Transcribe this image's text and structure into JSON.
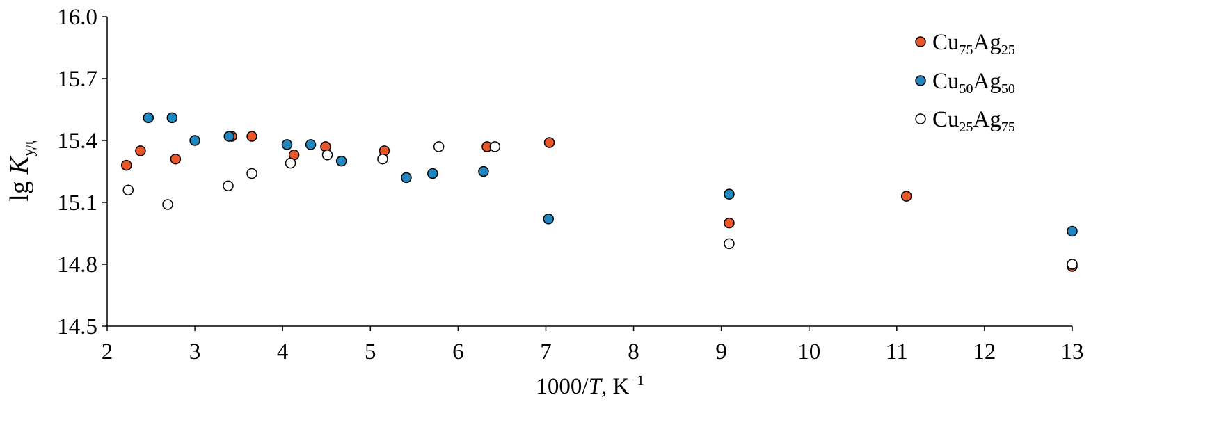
{
  "chart_data": {
    "type": "scatter",
    "title": "",
    "xlabel": {
      "prefix": "1000/",
      "var": "T",
      "unit": ", K",
      "sup": "−1"
    },
    "ylabel": {
      "prefix": "lg ",
      "var": "K",
      "sub": "уд"
    },
    "xlim": [
      2,
      13
    ],
    "ylim": [
      14.5,
      16.0
    ],
    "x_ticks": [
      2,
      3,
      4,
      5,
      6,
      7,
      8,
      9,
      10,
      11,
      12,
      13
    ],
    "y_ticks": [
      14.5,
      14.8,
      15.1,
      15.4,
      15.7,
      16.0
    ],
    "y_tick_labels": [
      "14.5",
      "14.8",
      "15.1",
      "15.4",
      "15.7",
      "16.0"
    ],
    "grid": false,
    "legend_position": "top-right",
    "series": [
      {
        "name": "Cu75Ag25",
        "legend": {
          "el1": "Cu",
          "n1": "75",
          "el2": "Ag",
          "n2": "25"
        },
        "color": "#E8562A",
        "points": [
          [
            2.22,
            15.28
          ],
          [
            2.38,
            15.35
          ],
          [
            2.78,
            15.31
          ],
          [
            3.42,
            15.42
          ],
          [
            3.65,
            15.42
          ],
          [
            4.13,
            15.33
          ],
          [
            4.49,
            15.37
          ],
          [
            5.16,
            15.35
          ],
          [
            6.33,
            15.37
          ],
          [
            7.04,
            15.39
          ],
          [
            9.09,
            15.0
          ],
          [
            11.11,
            15.13
          ],
          [
            13.0,
            14.79
          ]
        ]
      },
      {
        "name": "Cu50Ag50",
        "legend": {
          "el1": "Cu",
          "n1": "50",
          "el2": "Ag",
          "n2": "50"
        },
        "color": "#1F86C0",
        "points": [
          [
            2.47,
            15.51
          ],
          [
            2.74,
            15.51
          ],
          [
            3.0,
            15.4
          ],
          [
            3.39,
            15.42
          ],
          [
            4.05,
            15.38
          ],
          [
            4.32,
            15.38
          ],
          [
            4.67,
            15.3
          ],
          [
            5.41,
            15.22
          ],
          [
            5.71,
            15.24
          ],
          [
            6.29,
            15.25
          ],
          [
            7.03,
            15.02
          ],
          [
            9.09,
            15.14
          ],
          [
            13.0,
            14.96
          ]
        ]
      },
      {
        "name": "Cu25Ag75",
        "legend": {
          "el1": "Cu",
          "n1": "25",
          "el2": "Ag",
          "n2": "75"
        },
        "color": "#FFFFFF",
        "points": [
          [
            2.24,
            15.16
          ],
          [
            2.69,
            15.09
          ],
          [
            3.38,
            15.18
          ],
          [
            3.65,
            15.24
          ],
          [
            4.09,
            15.29
          ],
          [
            4.51,
            15.33
          ],
          [
            5.14,
            15.31
          ],
          [
            5.78,
            15.37
          ],
          [
            6.42,
            15.37
          ],
          [
            9.09,
            14.9
          ],
          [
            13.0,
            14.8
          ]
        ]
      }
    ]
  }
}
